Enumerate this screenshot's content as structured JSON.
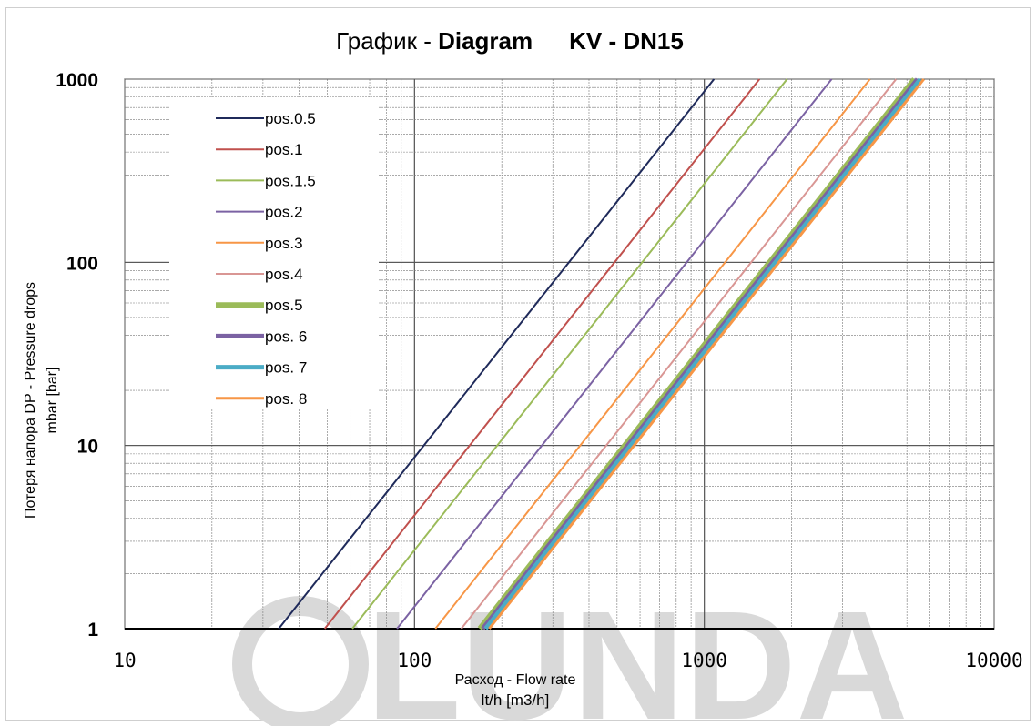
{
  "chart_data": {
    "type": "line",
    "title": "График - Diagram KV - DN15",
    "title_parts": [
      "График - ",
      "Diagram",
      "KV - DN15"
    ],
    "xlabel_line1": "Расход - Flow rate",
    "xlabel_line2": "lt/h   [m3/h]",
    "ylabel_line1": "Потеря напора DP -  Pressure drops",
    "ylabel_line2": "mbar   [bar]",
    "x_scale": "log",
    "y_scale": "log",
    "xlim": [
      10,
      10000
    ],
    "ylim": [
      1,
      1000
    ],
    "x_ticks": [
      "10",
      "100",
      "1000",
      "10000"
    ],
    "y_ticks": [
      "1",
      "10",
      "100",
      "1000"
    ],
    "grid": true,
    "legend_position": "top-left",
    "watermark": "LUNDA",
    "series": [
      {
        "name": "pos.0.5",
        "color": "#1f2a5a",
        "width": 2,
        "x": [
          34,
          1080
        ]
      },
      {
        "name": "pos.1",
        "color": "#c0504d",
        "width": 2,
        "x": [
          49,
          1550
        ]
      },
      {
        "name": "pos.1.5",
        "color": "#9bbb59",
        "width": 2,
        "x": [
          61,
          1930
        ]
      },
      {
        "name": "pos.2",
        "color": "#7b62a3",
        "width": 2,
        "x": [
          87,
          2750
        ]
      },
      {
        "name": "pos.3",
        "color": "#f79646",
        "width": 2,
        "x": [
          118,
          3730
        ]
      },
      {
        "name": "pos.4",
        "color": "#d99694",
        "width": 2,
        "x": [
          145,
          4590
        ]
      },
      {
        "name": "pos.5",
        "color": "#9bbb59",
        "width": 6,
        "x": [
          168,
          5310
        ]
      },
      {
        "name": "pos. 6",
        "color": "#7b62a3",
        "width": 5,
        "x": [
          172,
          5440
        ]
      },
      {
        "name": "pos. 7",
        "color": "#4bacc6",
        "width": 5,
        "x": [
          176,
          5570
        ]
      },
      {
        "name": "pos. 8",
        "color": "#f79646",
        "width": 3,
        "x": [
          181,
          5720
        ]
      }
    ],
    "series_y": [
      1,
      1000
    ]
  }
}
